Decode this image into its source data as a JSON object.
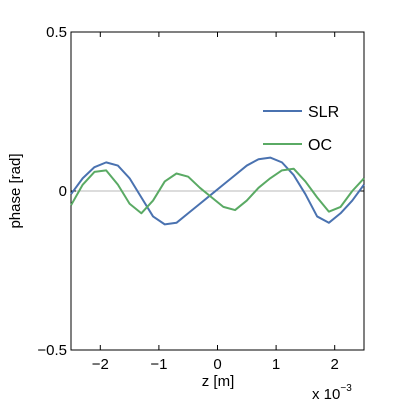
{
  "chart_data": {
    "type": "line",
    "xlabel": "z [m]",
    "ylabel": "phase [rad]",
    "x_multiplier": {
      "base": "x 10",
      "exponent": "−3"
    },
    "xlim": [
      -0.0025,
      0.0025
    ],
    "ylim": [
      -0.5,
      0.5
    ],
    "x_ticks": [
      -0.002,
      -0.001,
      0,
      0.001,
      0.002
    ],
    "x_tick_labels": [
      "−2",
      "−1",
      "0",
      "1",
      "2"
    ],
    "y_ticks": [
      -0.5,
      0,
      0.5
    ],
    "y_tick_labels": [
      "−0.5",
      "0",
      "0.5"
    ],
    "zero_line": true,
    "grid": false,
    "legend_position": "right",
    "x": [
      -0.0025,
      -0.0023,
      -0.0021,
      -0.0019,
      -0.0017,
      -0.0015,
      -0.0013,
      -0.0011,
      -0.0009,
      -0.0007,
      -0.0005,
      -0.0003,
      -0.0001,
      0.0001,
      0.0003,
      0.0005,
      0.0007,
      0.0009,
      0.0011,
      0.0013,
      0.0015,
      0.0017,
      0.0019,
      0.0021,
      0.0023,
      0.0025
    ],
    "series": [
      {
        "name": "SLR",
        "color": "#4a72b0",
        "values": [
          -0.01,
          0.04,
          0.075,
          0.09,
          0.08,
          0.04,
          -0.02,
          -0.08,
          -0.105,
          -0.1,
          -0.07,
          -0.04,
          -0.01,
          0.02,
          0.05,
          0.08,
          0.1,
          0.105,
          0.09,
          0.05,
          -0.01,
          -0.08,
          -0.1,
          -0.07,
          -0.03,
          0.02
        ]
      },
      {
        "name": "OC",
        "color": "#5aaa64",
        "values": [
          -0.045,
          0.02,
          0.06,
          0.065,
          0.02,
          -0.04,
          -0.07,
          -0.03,
          0.03,
          0.055,
          0.045,
          0.01,
          -0.02,
          -0.05,
          -0.06,
          -0.03,
          0.01,
          0.04,
          0.065,
          0.07,
          0.03,
          -0.02,
          -0.065,
          -0.05,
          0.0,
          0.04
        ]
      }
    ]
  }
}
